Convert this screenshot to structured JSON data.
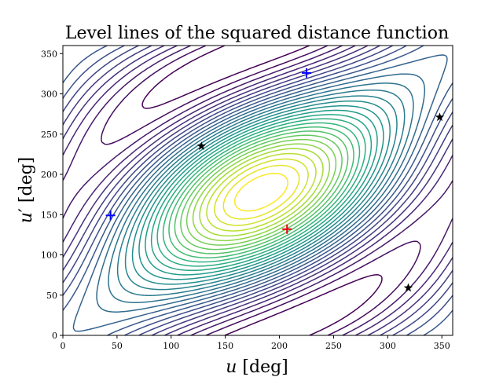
{
  "chart_data": {
    "type": "contour",
    "title": "Level lines of the squared distance function",
    "xlabel": "u [deg]",
    "ylabel": "u′ [deg]",
    "xlim": [
      0,
      360
    ],
    "ylim": [
      0,
      360
    ],
    "xticks": [
      0,
      50,
      100,
      150,
      200,
      250,
      300,
      350
    ],
    "yticks": [
      0,
      50,
      100,
      150,
      200,
      250,
      300,
      350
    ],
    "grid": false,
    "colormap": "viridis",
    "contour_levels": 30,
    "markers": [
      {
        "name": "max",
        "shape": "plus",
        "color": "#e8000b",
        "x": 207,
        "y": 132
      },
      {
        "name": "min",
        "shape": "plus",
        "color": "#0000ff",
        "x": 44,
        "y": 149
      },
      {
        "name": "min",
        "shape": "plus",
        "color": "#0000ff",
        "x": 225,
        "y": 326
      },
      {
        "name": "saddle",
        "shape": "star",
        "color": "#000000",
        "x": 128,
        "y": 235
      },
      {
        "name": "saddle",
        "shape": "star",
        "color": "#000000",
        "x": 348,
        "y": 271
      },
      {
        "name": "saddle",
        "shape": "star",
        "color": "#000000",
        "x": 319,
        "y": 59
      }
    ]
  }
}
